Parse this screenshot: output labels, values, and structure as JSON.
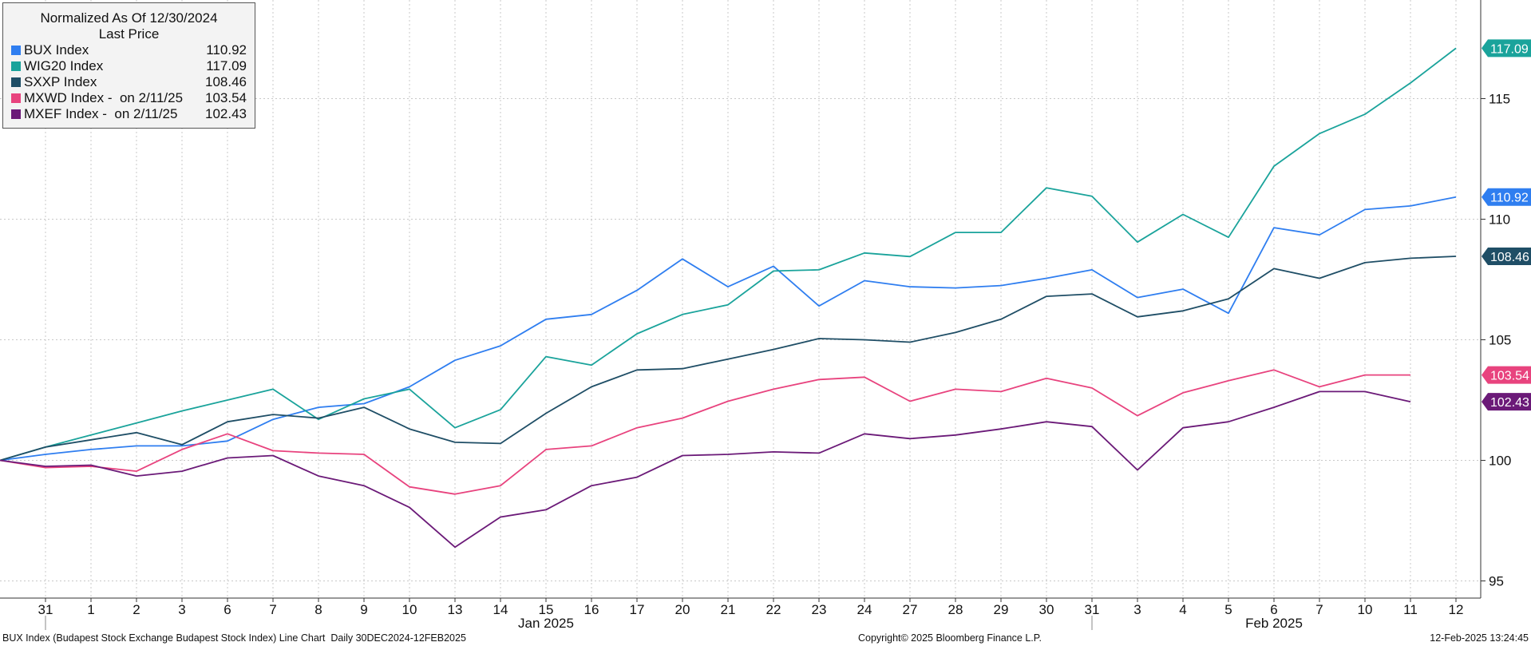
{
  "legend": {
    "title": "Normalized As Of 12/30/2024",
    "subtitle": "Last Price",
    "rows": [
      {
        "label": "BUX Index",
        "value": "110.92"
      },
      {
        "label": "WIG20 Index",
        "value": "117.09"
      },
      {
        "label": "SXXP Index",
        "value": "108.46"
      },
      {
        "label": "MXWD Index -  on 2/11/25",
        "value": "103.54"
      },
      {
        "label": "MXEF Index -  on 2/11/25",
        "value": "102.43"
      }
    ]
  },
  "footer": {
    "left": "BUX Index (Budapest Stock Exchange Budapest Stock Index) Line Chart  Daily 30DEC2024-12FEB2025",
    "center": "Copyright© 2025 Bloomberg Finance L.P.",
    "right": "12-Feb-2025 13:24:45"
  },
  "chart_data": {
    "type": "line",
    "x": [
      "30",
      "31",
      "1",
      "2",
      "3",
      "6",
      "7",
      "8",
      "9",
      "10",
      "13",
      "14",
      "15",
      "16",
      "17",
      "20",
      "21",
      "22",
      "23",
      "24",
      "27",
      "28",
      "29",
      "30",
      "31",
      "3",
      "4",
      "5",
      "6",
      "7",
      "10",
      "11",
      "12"
    ],
    "tick_labels": [
      "31",
      "1",
      "2",
      "3",
      "6",
      "7",
      "8",
      "9",
      "10",
      "13",
      "14",
      "15",
      "16",
      "17",
      "20",
      "21",
      "22",
      "23",
      "24",
      "27",
      "28",
      "29",
      "30",
      "31",
      "3",
      "4",
      "5",
      "6",
      "7",
      "10",
      "11",
      "12"
    ],
    "month_labels": [
      {
        "label": "Jan 2025",
        "at": "15"
      },
      {
        "label": "Feb 2025",
        "at": "6"
      }
    ],
    "ylim": [
      94.4,
      119
    ],
    "yticks": [
      95,
      100,
      105,
      110,
      115
    ],
    "grid": true,
    "legend_position": "top-left",
    "series": [
      {
        "name": "BUX Index",
        "color": "#2f7ef0",
        "last": "110.92",
        "values": [
          100,
          100.25,
          100.45,
          100.6,
          100.6,
          100.8,
          101.7,
          102.2,
          102.35,
          103.05,
          104.15,
          104.75,
          105.85,
          106.05,
          107.05,
          108.35,
          107.2,
          108.05,
          106.4,
          107.45,
          107.2,
          107.15,
          107.25,
          107.55,
          107.9,
          106.75,
          107.1,
          106.1,
          109.65,
          109.35,
          110.4,
          110.55,
          110.92
        ]
      },
      {
        "name": "WIG20 Index",
        "color": "#1aa39b",
        "last": "117.09",
        "values": [
          100,
          100.55,
          101.05,
          101.55,
          102.05,
          102.5,
          102.95,
          101.7,
          102.55,
          102.95,
          101.35,
          102.1,
          104.3,
          103.95,
          105.25,
          106.05,
          106.45,
          107.85,
          107.9,
          108.6,
          108.45,
          109.45,
          109.45,
          111.3,
          110.95,
          109.05,
          110.2,
          109.25,
          112.2,
          113.55,
          114.35,
          115.65,
          117.09
        ]
      },
      {
        "name": "SXXP Index",
        "color": "#1f4e66",
        "last": "108.46",
        "values": [
          100,
          100.55,
          100.85,
          101.15,
          100.65,
          101.6,
          101.9,
          101.75,
          102.2,
          101.3,
          100.75,
          100.7,
          101.95,
          103.05,
          103.75,
          103.8,
          104.2,
          104.6,
          105.05,
          105.0,
          104.9,
          105.3,
          105.85,
          106.8,
          106.9,
          105.95,
          106.2,
          106.7,
          107.95,
          107.55,
          108.2,
          108.38,
          108.46
        ]
      },
      {
        "name": "MXWD Index -  on 2/11/25",
        "color": "#e8437e",
        "last": "103.54",
        "values": [
          100,
          99.7,
          99.75,
          99.55,
          100.45,
          101.1,
          100.4,
          100.3,
          100.25,
          98.9,
          98.6,
          98.95,
          100.45,
          100.6,
          101.35,
          101.75,
          102.45,
          102.95,
          103.35,
          103.45,
          102.45,
          102.95,
          102.85,
          103.4,
          103.0,
          101.85,
          102.8,
          103.3,
          103.75,
          103.05,
          103.54,
          103.54,
          null
        ]
      },
      {
        "name": "MXEF Index -  on 2/11/25",
        "color": "#6b1a78",
        "last": "102.43",
        "values": [
          100,
          99.75,
          99.8,
          99.35,
          99.55,
          100.1,
          100.2,
          99.35,
          98.95,
          98.05,
          96.4,
          97.65,
          97.95,
          98.95,
          99.3,
          100.2,
          100.25,
          100.35,
          100.3,
          101.1,
          100.9,
          101.05,
          101.3,
          101.6,
          101.4,
          99.6,
          101.35,
          101.6,
          102.2,
          102.85,
          102.85,
          102.43,
          null
        ]
      }
    ]
  }
}
